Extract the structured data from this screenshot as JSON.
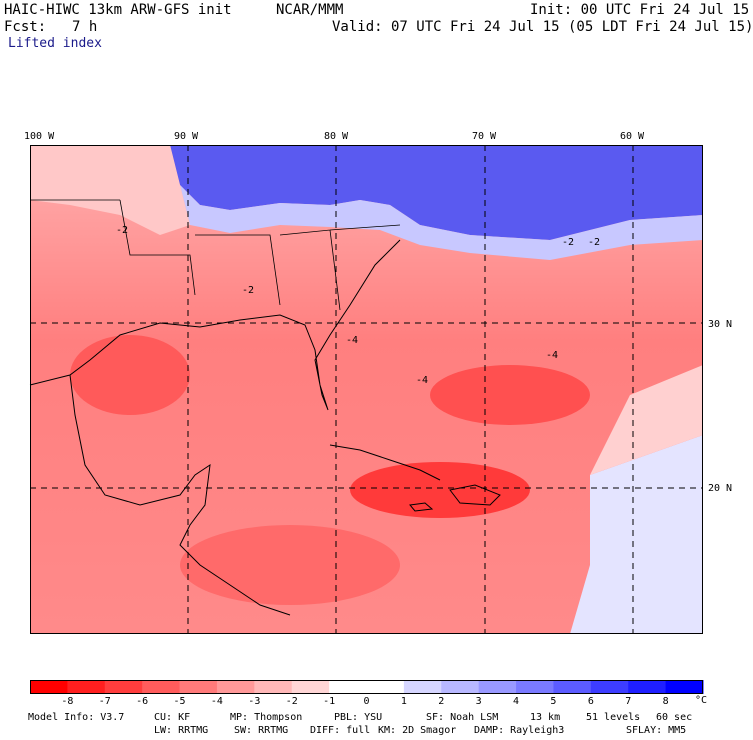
{
  "header": {
    "model": "HAIC-HIWC 13km ARW-GFS init",
    "center": "NCAR/MMM",
    "init": "Init: 00 UTC Fri 24 Jul 15",
    "fcst_label": "Fcst:",
    "fcst_value": "7 h",
    "valid": "Valid: 07 UTC Fri 24 Jul 15 (05 LDT Fri 24 Jul 15)",
    "field": "Lifted index"
  },
  "map": {
    "lon_labels": [
      "100 W",
      "90 W",
      "80 W",
      "70 W",
      "60 W"
    ],
    "lat_labels": [
      "30 N",
      "20 N"
    ],
    "contour_labels": [
      "-2",
      "-2",
      "-2",
      "-2",
      "-4",
      "-4",
      "-4"
    ]
  },
  "colorbar": {
    "tick_labels": [
      "-8",
      "-7",
      "-6",
      "-5",
      "-4",
      "-3",
      "-2",
      "-1",
      "0",
      "1",
      "2",
      "3",
      "4",
      "5",
      "6",
      "7",
      "8"
    ],
    "unit": "°C",
    "colors": [
      "#ff0000",
      "#ff1f1f",
      "#ff3d3d",
      "#ff5c5c",
      "#ff7a7a",
      "#ff9999",
      "#ffb8b8",
      "#ffd6d6",
      "#ffffff",
      "#ffffff",
      "#d6d6ff",
      "#b8b8ff",
      "#9999ff",
      "#7a7aff",
      "#5c5cff",
      "#3d3dff",
      "#1f1fff",
      "#0000ff"
    ]
  },
  "footer": {
    "line1": [
      {
        "key": "m1",
        "text": "Model Info: V3.7"
      },
      {
        "key": "m2",
        "text": "CU: KF"
      },
      {
        "key": "m3",
        "text": "MP: Thompson"
      },
      {
        "key": "m4",
        "text": "PBL: YSU"
      },
      {
        "key": "m5",
        "text": "SF: Noah LSM"
      },
      {
        "key": "m6",
        "text": "13 km"
      },
      {
        "key": "m7",
        "text": "51 levels"
      },
      {
        "key": "m8",
        "text": "60 sec"
      }
    ],
    "line2": [
      {
        "key": "n1",
        "text": "LW: RRTMG"
      },
      {
        "key": "n2",
        "text": "SW: RRTMG"
      },
      {
        "key": "n3",
        "text": "DIFF: full"
      },
      {
        "key": "n4",
        "text": "KM: 2D Smagor"
      },
      {
        "key": "n5",
        "text": "DAMP: Rayleigh3"
      },
      {
        "key": "n6",
        "text": "SFLAY: MM5"
      }
    ]
  }
}
